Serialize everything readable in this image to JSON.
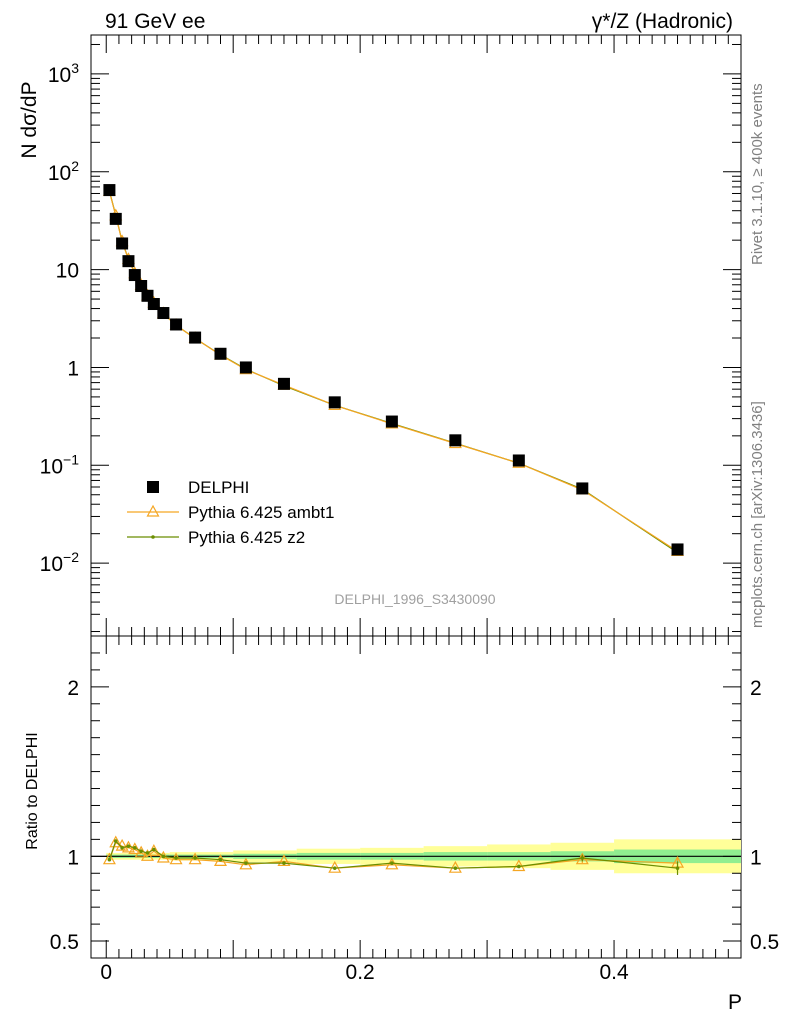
{
  "header": {
    "left": "91 GeV ee",
    "right": "γ*/Z (Hadronic)"
  },
  "side_labels": {
    "rivet": "Rivet 3.1.10, ≥ 400k events",
    "mcplots": "mcplots.cern.ch [arXiv:1306.3436]"
  },
  "watermark": "DELPHI_1996_S3430090",
  "chart_data": [
    {
      "type": "scatter",
      "panel": "main",
      "ylabel": "N dσ/dP",
      "yscale": "log",
      "xlim": [
        -0.012,
        0.5
      ],
      "ylim": [
        0.0018,
        2500
      ],
      "yticks": [
        {
          "v": 0.01,
          "base": "10",
          "exp": "−2"
        },
        {
          "v": 0.1,
          "base": "10",
          "exp": "−1"
        },
        {
          "v": 1,
          "base": "1",
          "exp": ""
        },
        {
          "v": 10,
          "base": "10",
          "exp": ""
        },
        {
          "v": 100,
          "base": "10",
          "exp": "2"
        },
        {
          "v": 1000,
          "base": "10",
          "exp": "3"
        }
      ],
      "legend": {
        "position": "lower-left",
        "entries": [
          "DELPHI",
          "Pythia 6.425 ambt1",
          "Pythia 6.425 z2"
        ]
      },
      "x": [
        0.0025,
        0.0075,
        0.0125,
        0.0175,
        0.0225,
        0.0275,
        0.0325,
        0.0375,
        0.045,
        0.055,
        0.07,
        0.09,
        0.11,
        0.14,
        0.18,
        0.225,
        0.275,
        0.325,
        0.375,
        0.45
      ],
      "series": [
        {
          "name": "DELPHI",
          "color": "#000000",
          "marker": "square",
          "values": [
            65,
            33,
            18.5,
            12.2,
            8.8,
            6.8,
            5.4,
            4.45,
            3.6,
            2.75,
            2.02,
            1.38,
            1.0,
            0.68,
            0.44,
            0.28,
            0.18,
            0.112,
            0.058,
            0.0138
          ]
        },
        {
          "name": "Pythia 6.425 ambt1",
          "color": "#f5a623",
          "marker": "triangle",
          "values": [
            63,
            35.5,
            19.3,
            12.7,
            9.1,
            6.9,
            5.4,
            4.55,
            3.55,
            2.7,
            1.98,
            1.34,
            0.95,
            0.66,
            0.41,
            0.265,
            0.167,
            0.105,
            0.056,
            0.0132
          ]
        },
        {
          "name": "Pythia 6.425 z2",
          "color": "#6b8e00",
          "marker": "dot",
          "values": [
            63.5,
            36,
            19.5,
            12.8,
            9.2,
            6.95,
            5.45,
            4.6,
            3.55,
            2.7,
            1.98,
            1.35,
            0.96,
            0.65,
            0.41,
            0.268,
            0.168,
            0.105,
            0.057,
            0.0128
          ]
        }
      ]
    },
    {
      "type": "line",
      "panel": "ratio",
      "xlabel": "P",
      "ylabel": "Ratio to DELPHI",
      "xlim": [
        -0.012,
        0.5
      ],
      "ylim": [
        0.4,
        2.3
      ],
      "xticks": [
        0,
        0.2,
        0.4
      ],
      "xtick_labels": [
        "0",
        "0.2",
        "0.4"
      ],
      "yticks": [
        0.5,
        1,
        2
      ],
      "ytick_labels": [
        "0.5",
        "1",
        "2"
      ],
      "bands": [
        {
          "x_edges": [
            0,
            0.05,
            0.1,
            0.15,
            0.2,
            0.25,
            0.3,
            0.35,
            0.4,
            0.5
          ],
          "stat_halfwidth": [
            0.01,
            0.01,
            0.015,
            0.02,
            0.02,
            0.025,
            0.025,
            0.03,
            0.04
          ],
          "total_halfwidth": [
            0.02,
            0.025,
            0.035,
            0.045,
            0.05,
            0.06,
            0.07,
            0.08,
            0.1
          ]
        }
      ],
      "band_colors": {
        "stat": "#90ee90",
        "total": "#ffff99"
      },
      "x": [
        0.0025,
        0.0075,
        0.0125,
        0.0175,
        0.0225,
        0.0275,
        0.0325,
        0.0375,
        0.045,
        0.055,
        0.07,
        0.09,
        0.11,
        0.14,
        0.18,
        0.225,
        0.275,
        0.325,
        0.375,
        0.45
      ],
      "series": [
        {
          "name": "Pythia 6.425 ambt1",
          "color": "#f5a623",
          "marker": "triangle",
          "values": [
            0.98,
            1.08,
            1.06,
            1.05,
            1.04,
            1.02,
            1.0,
            1.03,
            0.99,
            0.98,
            0.98,
            0.97,
            0.95,
            0.97,
            0.93,
            0.95,
            0.93,
            0.94,
            0.98,
            0.96
          ],
          "errors": [
            0,
            0,
            0,
            0,
            0,
            0,
            0,
            0,
            0,
            0,
            0,
            0,
            0,
            0,
            0,
            0,
            0,
            0,
            0.02,
            0.03
          ]
        },
        {
          "name": "Pythia 6.425 z2",
          "color": "#6b8e00",
          "marker": "dot",
          "values": [
            0.98,
            1.09,
            1.05,
            1.06,
            1.05,
            1.03,
            1.02,
            1.04,
            1.0,
            0.99,
            0.99,
            0.98,
            0.96,
            0.96,
            0.93,
            0.96,
            0.93,
            0.94,
            0.99,
            0.93
          ],
          "errors": [
            0,
            0,
            0,
            0,
            0,
            0,
            0,
            0,
            0,
            0,
            0,
            0,
            0,
            0,
            0,
            0,
            0,
            0,
            0.02,
            0.04
          ]
        }
      ]
    }
  ]
}
